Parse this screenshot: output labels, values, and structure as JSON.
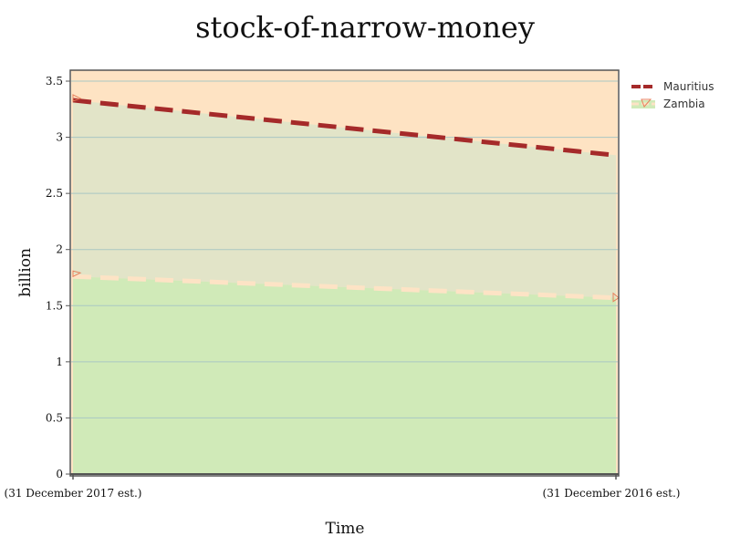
{
  "chart_data": {
    "type": "area",
    "title": "stock-of-narrow-money",
    "xlabel": "Time",
    "ylabel": "billion",
    "x": [
      "(31 December 2017 est.)",
      "(31 December 2016 est.)"
    ],
    "ylim": [
      0,
      3.6
    ],
    "yticks": [
      "0",
      "0.5",
      "1",
      "1.5",
      "2",
      "2.5",
      "3",
      "3.5"
    ],
    "grid": true,
    "legend_position": "top-right",
    "series": [
      {
        "name": "Mauritius",
        "values": [
          3.33,
          2.84
        ],
        "line_color": "#a52a2a",
        "fill_color": "#fee3c3",
        "line_style": "dashed"
      },
      {
        "name": "Zambia",
        "values": [
          1.76,
          1.57
        ],
        "line_color": "#fde3c5",
        "fill_color": "#d0eab8",
        "line_style": "dashed"
      }
    ],
    "overlap_fill_color": "#e2e4c8",
    "grid_color": "#a9c7c3",
    "axis_color": "#555555"
  }
}
